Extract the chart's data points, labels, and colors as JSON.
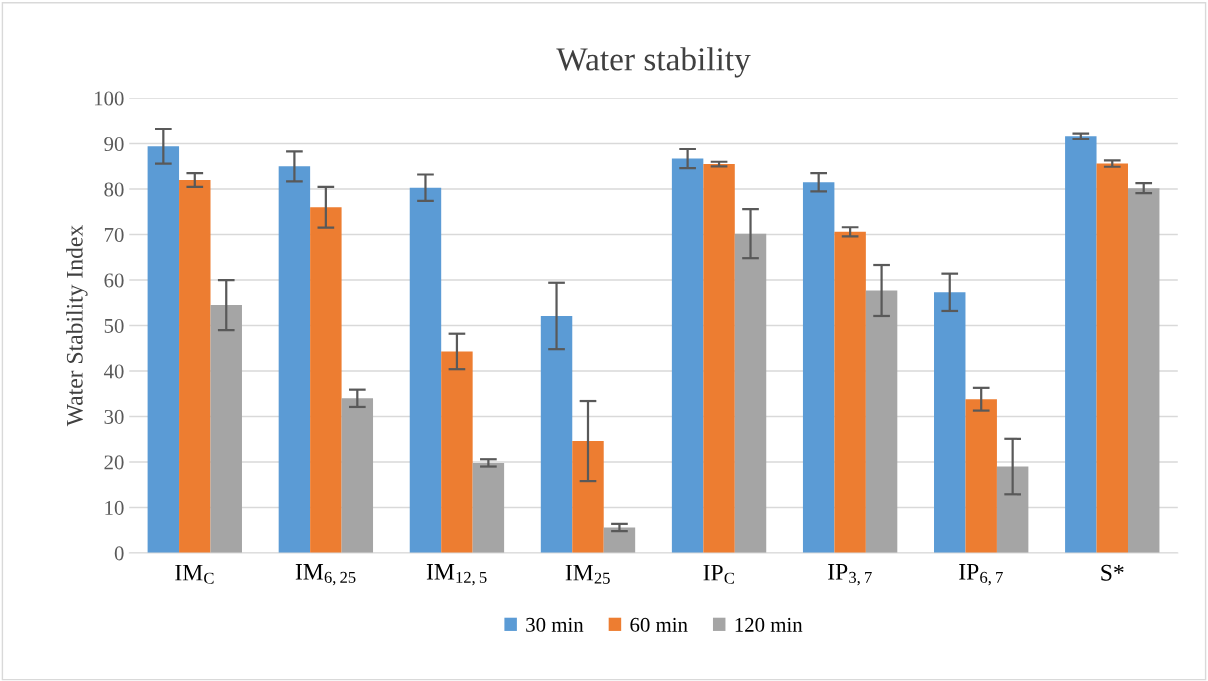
{
  "chart_data": {
    "type": "bar",
    "title": "Water stability",
    "ylabel": "Water Stability Index",
    "categories": [
      "IM$_{C}$",
      "IM$_{6,25}$",
      "IM$_{12,5}$",
      "IM$_{25}$",
      "IP$_{C}$",
      "IP$_{3,7}$",
      "IP$_{6,7}$",
      "S*"
    ],
    "series": [
      {
        "name": "30 min",
        "color": "#5b9bd5",
        "values": [
          89.4,
          85,
          80.3,
          52.1,
          86.7,
          81.5,
          57.3,
          91.6
        ],
        "errors": [
          3.8,
          3.3,
          2.9,
          7.3,
          2.1,
          2,
          4.1,
          0.6
        ]
      },
      {
        "name": "60 min",
        "color": "#ed7d31",
        "values": [
          82,
          76,
          44.3,
          24.6,
          85.5,
          70.6,
          33.8,
          85.6
        ],
        "errors": [
          1.5,
          4.5,
          3.9,
          8.8,
          0.5,
          1,
          2.5,
          0.7
        ]
      },
      {
        "name": "120 min",
        "color": "#a5a5a5",
        "values": [
          54.5,
          34,
          19.8,
          5.6,
          70.2,
          57.7,
          19,
          80.2
        ],
        "errors": [
          5.5,
          1.9,
          0.8,
          0.8,
          5.4,
          5.6,
          6.1,
          1.1
        ]
      }
    ],
    "ylim": [
      0,
      100
    ],
    "yticks": [
      0,
      10,
      20,
      30,
      40,
      50,
      60,
      70,
      80,
      90,
      100
    ],
    "grid": "y",
    "legend": "bottom"
  }
}
